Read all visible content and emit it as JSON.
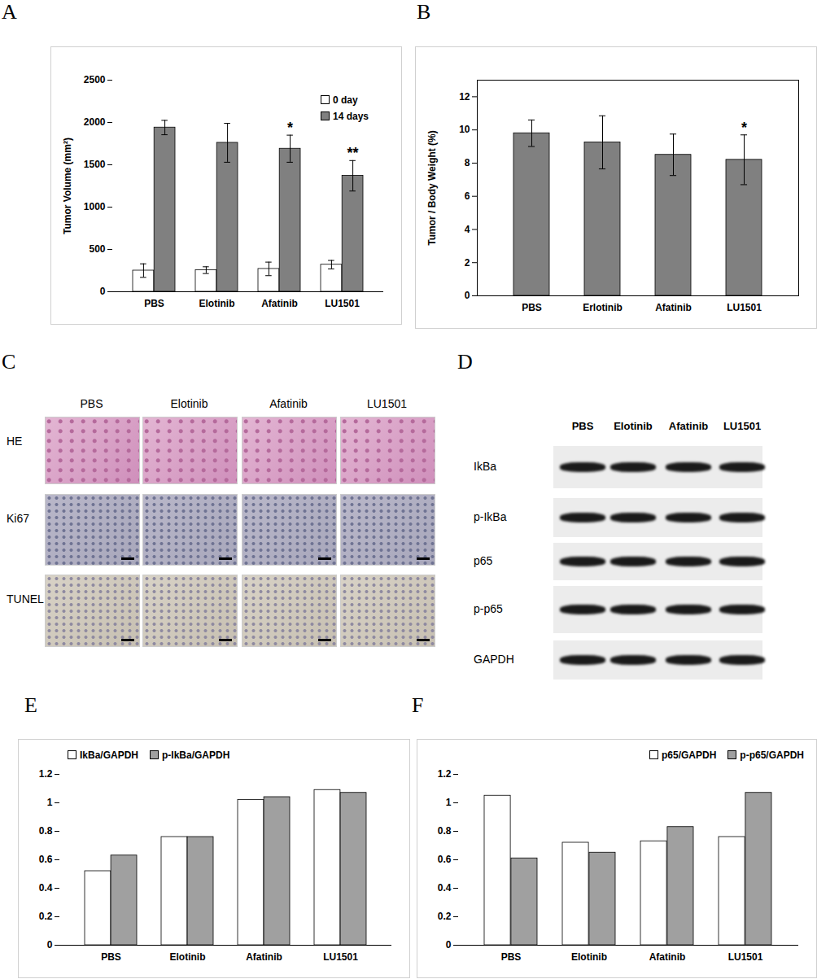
{
  "chart_data": [
    {
      "type": "bar",
      "title": "A",
      "ylabel": "Tumor Volume (mm²)",
      "categories": [
        "PBS",
        "Elotinib",
        "Afatinib",
        "LU1501"
      ],
      "series": [
        {
          "name": "0 day",
          "color": "#ffffff",
          "values": [
            250,
            255,
            270,
            320
          ],
          "errors": [
            80,
            40,
            80,
            50
          ]
        },
        {
          "name": "14 days",
          "color": "#808080",
          "values": [
            1940,
            1760,
            1690,
            1370
          ],
          "errors": [
            85,
            230,
            160,
            180
          ],
          "significance": [
            null,
            null,
            "*",
            "**"
          ]
        }
      ],
      "ylim": [
        0,
        2500
      ],
      "yticks": [
        0,
        500,
        1000,
        1500,
        2000,
        2500
      ],
      "legend": "upper right",
      "grid": false
    },
    {
      "type": "bar",
      "title": "B",
      "ylabel": "Tumor / Body Weight (%)",
      "categories": [
        "PBS",
        "Erlotinib",
        "Afatinib",
        "LU1501"
      ],
      "values": [
        9.8,
        9.25,
        8.5,
        8.2
      ],
      "errors": [
        0.8,
        1.6,
        1.25,
        1.5
      ],
      "significance": [
        null,
        null,
        null,
        "*"
      ],
      "color": "#808080",
      "ylim": [
        0,
        13
      ],
      "yticks": [
        0,
        2,
        4,
        6,
        8,
        10,
        12
      ],
      "grid": false
    },
    {
      "type": "image_grid",
      "title": "C",
      "columns": [
        "PBS",
        "Elotinib",
        "Afatinib",
        "LU1501"
      ],
      "rows": [
        "HE",
        "Ki67",
        "TUNEL"
      ]
    },
    {
      "type": "western_blot",
      "title": "D",
      "columns": [
        "PBS",
        "Elotinib",
        "Afatinib",
        "LU1501"
      ],
      "rows": [
        "IkBa",
        "p-IkBa",
        "p65",
        "p-p65",
        "GAPDH"
      ]
    },
    {
      "type": "bar",
      "title": "E",
      "categories": [
        "PBS",
        "Elotinib",
        "Afatinib",
        "LU1501"
      ],
      "series": [
        {
          "name": "IkBa/GAPDH",
          "color": "#ffffff",
          "values": [
            0.52,
            0.76,
            1.02,
            1.09
          ]
        },
        {
          "name": "p-IkBa/GAPDH",
          "color": "#a0a0a0",
          "values": [
            0.63,
            0.76,
            1.04,
            1.07
          ]
        }
      ],
      "ylim": [
        0,
        1.2
      ],
      "yticks": [
        0,
        0.2,
        0.4,
        0.6,
        0.8,
        1,
        1.2
      ],
      "legend": "upper left",
      "grid": false
    },
    {
      "type": "bar",
      "title": "F",
      "categories": [
        "PBS",
        "Elotinib",
        "Afatinib",
        "LU1501"
      ],
      "series": [
        {
          "name": "p65/GAPDH",
          "color": "#ffffff",
          "values": [
            1.05,
            0.72,
            0.73,
            0.76
          ]
        },
        {
          "name": "p-p65/GAPDH",
          "color": "#a0a0a0",
          "values": [
            0.61,
            0.65,
            0.83,
            1.07
          ]
        }
      ],
      "ylim": [
        0,
        1.2
      ],
      "yticks": [
        0,
        0.2,
        0.4,
        0.6,
        0.8,
        1,
        1.2
      ],
      "legend": "upper right",
      "grid": false
    }
  ]
}
